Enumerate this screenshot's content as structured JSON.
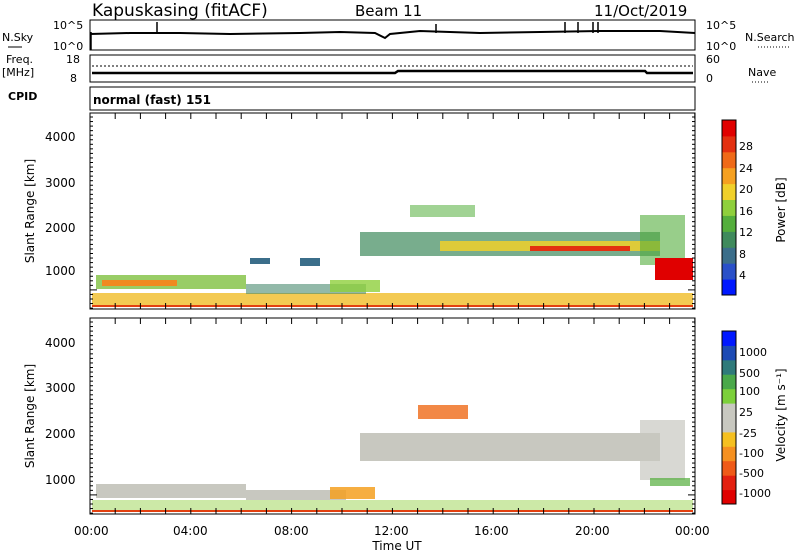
{
  "header": {
    "station": "Kapuskasing (fitACF)",
    "beam": "Beam 11",
    "date": "11/Oct/2019"
  },
  "noise_panel": {
    "left_label": "N.Sky",
    "left_ticks": [
      "10^5",
      "10^0"
    ],
    "right_ticks": [
      "10^5",
      "10^0"
    ],
    "right_label": "N.Search"
  },
  "freq_panel": {
    "left_label_1": "Freq.",
    "left_label_2": "[MHz]",
    "left_ticks": [
      "18",
      "8"
    ],
    "right_ticks": [
      "60",
      "0"
    ],
    "right_label": "Nave",
    "cpid_label": "CPID"
  },
  "mode_text": "normal (fast) 151",
  "power_panel": {
    "ylabel": "Slant Range [km]",
    "yticks": [
      "4000",
      "3000",
      "2000",
      "1000"
    ],
    "colorbar_label": "Power [dB]",
    "colorbar_ticks": [
      "28",
      "24",
      "20",
      "16",
      "12",
      "8",
      "4"
    ],
    "colors": [
      "#0018ff",
      "#2a50c8",
      "#3b6e8a",
      "#3f8a5c",
      "#54ae3c",
      "#8fcf3c",
      "#f0d02a",
      "#f5a020",
      "#ef6a18",
      "#e33010",
      "#e00000"
    ]
  },
  "velocity_panel": {
    "ylabel": "Slant Range [km]",
    "yticks": [
      "4000",
      "3000",
      "2000",
      "1000"
    ],
    "colorbar_label": "Velocity [m s⁻¹]",
    "colorbar_ticks": [
      "1000",
      "500",
      "100",
      "25",
      "-25",
      "-100",
      "-500",
      "-1000"
    ],
    "colors": [
      "#0018ff",
      "#1c4ab4",
      "#2f7a7a",
      "#4aa84a",
      "#7cd03a",
      "#c8c8c0",
      "#c8c8c0",
      "#f5c020",
      "#f59020",
      "#ef5a18",
      "#e32010",
      "#e00000"
    ]
  },
  "x_axis": {
    "ticks": [
      "00:00",
      "04:00",
      "08:00",
      "12:00",
      "16:00",
      "20:00",
      "00:00"
    ],
    "label": "Time UT"
  },
  "chart_data": {
    "type": "heatmap",
    "x_range": [
      "00:00",
      "00:00"
    ],
    "y_range_km": [
      180,
      4550
    ],
    "power_colorbar_range_db": [
      0,
      30
    ],
    "velocity_colorbar_range_ms": [
      -1000,
      1000
    ]
  }
}
